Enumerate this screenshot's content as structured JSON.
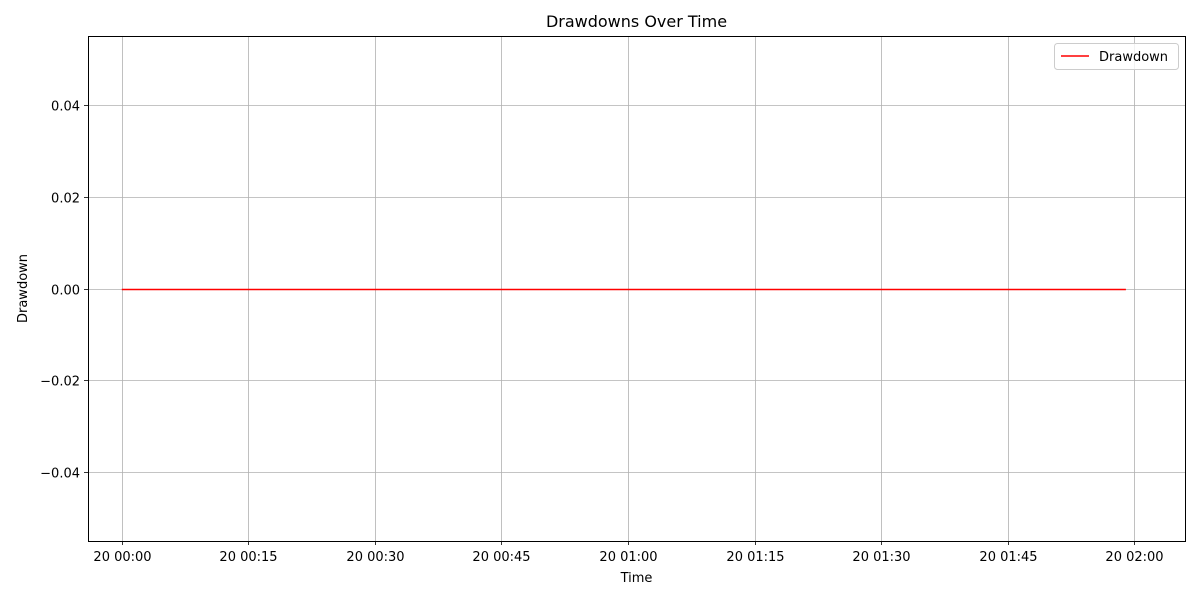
{
  "chart_data": {
    "type": "line",
    "title": "Drawdowns Over Time",
    "xlabel": "Time",
    "ylabel": "Drawdown",
    "x_tick_labels": [
      "20 00:00",
      "20 00:15",
      "20 00:30",
      "20 00:45",
      "20 01:00",
      "20 01:15",
      "20 01:30",
      "20 01:45",
      "20 02:00"
    ],
    "x_ticks": [
      "00:00",
      "00:15",
      "00:30",
      "00:45",
      "01:00",
      "01:15",
      "01:30",
      "01:45",
      "02:00"
    ],
    "xlim": [
      "23:56",
      "02:06"
    ],
    "y_ticks": [
      0.04,
      0.02,
      0.0,
      -0.02,
      -0.04
    ],
    "y_tick_labels": [
      "0.04",
      "0.02",
      "0.00",
      "−0.02",
      "−0.04"
    ],
    "ylim": [
      -0.055,
      0.055
    ],
    "grid": true,
    "legend_position": "top-right",
    "series": [
      {
        "name": "Drawdown",
        "color": "#ff0000",
        "x": [
          "00:00",
          "01:59"
        ],
        "y": [
          0.0,
          0.0
        ]
      }
    ]
  }
}
